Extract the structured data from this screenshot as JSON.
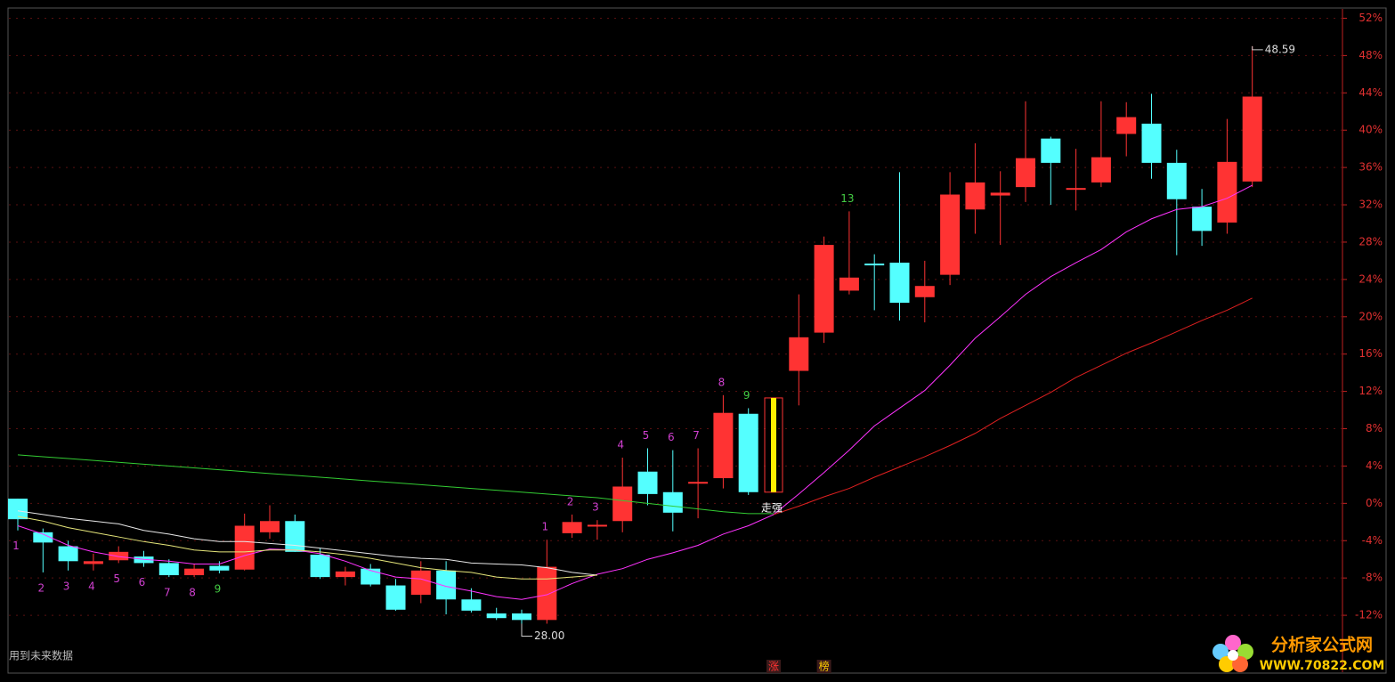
{
  "chart_data": {
    "type": "candlestick",
    "up_color": "#ff3333",
    "down_color": "#54ffff",
    "open": [
      0.5,
      -3.1,
      -4.6,
      -6.5,
      -6.1,
      -5.7,
      -6.4,
      -7.7,
      -6.7,
      -7.1,
      -3.1,
      -1.9,
      -5.5,
      -7.9,
      -7.0,
      -8.8,
      -9.8,
      -7.2,
      -10.3,
      -11.8,
      -11.8,
      -12.5,
      -3.2,
      -2.4,
      -1.9,
      3.4,
      1.2,
      2.2,
      2.7,
      9.6,
      1.2,
      14.2,
      18.3,
      22.8,
      25.7,
      25.8,
      22.1,
      24.5,
      31.5,
      33.0,
      33.9,
      39.1,
      33.7,
      34.4,
      39.6,
      40.7,
      36.5,
      31.8,
      30.1,
      34.5
    ],
    "high": [
      0.5,
      -2.7,
      -4.0,
      -5.4,
      -4.6,
      -5.1,
      -6.0,
      -6.5,
      -6.2,
      -1.1,
      -0.2,
      -1.2,
      -4.8,
      -6.8,
      -6.5,
      -8.1,
      -6.2,
      -6.2,
      -9.1,
      -11.2,
      -11.4,
      -3.9,
      -1.2,
      -1.8,
      4.9,
      5.9,
      5.7,
      5.9,
      11.6,
      10.2,
      11.3,
      22.4,
      28.6,
      31.3,
      26.7,
      35.5,
      26.0,
      35.5,
      38.6,
      35.6,
      43.1,
      39.3,
      38.0,
      43.1,
      43.0,
      43.9,
      37.9,
      33.7,
      41.2,
      49.0
    ],
    "low": [
      -2.9,
      -7.4,
      -7.2,
      -7.2,
      -6.4,
      -6.8,
      -7.9,
      -7.9,
      -7.5,
      -7.2,
      -3.8,
      -5.2,
      -8.1,
      -8.8,
      -8.9,
      -11.5,
      -10.7,
      -11.9,
      -11.7,
      -12.5,
      -12.9,
      -12.9,
      -3.7,
      -3.9,
      -3.1,
      -0.2,
      -3.0,
      -1.6,
      1.6,
      0.9,
      1.2,
      10.5,
      17.2,
      22.4,
      20.7,
      19.6,
      19.4,
      23.4,
      28.9,
      27.7,
      32.3,
      32.0,
      31.4,
      33.9,
      37.2,
      34.8,
      26.6,
      27.6,
      28.9,
      33.9
    ],
    "close": [
      -1.7,
      -4.2,
      -6.2,
      -6.2,
      -5.2,
      -6.4,
      -7.7,
      -7.0,
      -7.2,
      -2.4,
      -1.9,
      -5.2,
      -7.9,
      -7.3,
      -8.7,
      -11.4,
      -7.2,
      -10.3,
      -11.5,
      -12.3,
      -12.5,
      -6.8,
      -2.0,
      -2.3,
      1.8,
      1.0,
      -1.0,
      2.3,
      9.7,
      1.2,
      11.3,
      17.8,
      27.7,
      24.2,
      25.6,
      21.5,
      23.3,
      33.1,
      34.4,
      33.3,
      37.0,
      36.5,
      33.8,
      37.1,
      41.4,
      36.5,
      32.6,
      29.2,
      36.6,
      43.6
    ],
    "highlight": 30,
    "lines": [
      {
        "color": "#ff33ff",
        "values": [
          -2.4,
          -3.3,
          -4.5,
          -5.2,
          -5.7,
          -6.0,
          -6.2,
          -6.5,
          -6.5,
          -5.6,
          -4.9,
          -5.0,
          -5.4,
          -6.2,
          -7.2,
          -7.9,
          -8.1,
          -8.9,
          -9.4,
          -10.0,
          -10.3,
          -9.8,
          -8.6,
          -7.6,
          -7.0,
          -6.0,
          -5.3,
          -4.5,
          -3.3,
          -2.4,
          -1.2,
          1.0,
          3.3,
          5.7,
          8.3,
          10.2,
          12.1,
          14.8,
          17.7,
          20.0,
          22.4,
          24.3,
          25.8,
          27.2,
          29.1,
          30.5,
          31.5,
          31.8,
          32.7,
          34.1
        ]
      },
      {
        "color": "#e02020",
        "values": [
          null,
          null,
          null,
          null,
          null,
          null,
          null,
          null,
          null,
          null,
          null,
          null,
          null,
          null,
          null,
          null,
          null,
          null,
          null,
          null,
          null,
          null,
          null,
          null,
          null,
          null,
          null,
          null,
          null,
          null,
          -1.2,
          -0.3,
          0.7,
          1.6,
          2.8,
          3.9,
          5.0,
          6.2,
          7.5,
          9.1,
          10.5,
          11.9,
          13.5,
          14.8,
          16.1,
          17.2,
          18.4,
          19.6,
          20.7,
          22.0
        ]
      },
      {
        "color": "#33cc33",
        "values": [
          5.2,
          5.0,
          4.8,
          4.6,
          4.4,
          4.2,
          4.0,
          3.8,
          3.6,
          3.4,
          3.2,
          3.0,
          2.8,
          2.6,
          2.4,
          2.2,
          2.0,
          1.8,
          1.6,
          1.4,
          1.2,
          1.0,
          0.8,
          0.6,
          0.3,
          0.0,
          -0.3,
          -0.6,
          -0.9,
          -1.1,
          -1.1,
          null,
          null,
          null,
          null,
          null,
          null,
          null,
          null,
          null,
          null,
          null,
          null,
          null,
          null,
          null,
          null,
          null,
          null,
          null
        ]
      },
      {
        "color": "#e8e8e8",
        "values": [
          -0.8,
          -1.2,
          -1.6,
          -1.9,
          -2.2,
          -2.9,
          -3.3,
          -3.8,
          -4.1,
          -4.1,
          -4.3,
          -4.5,
          -4.8,
          -5.1,
          -5.4,
          -5.7,
          -5.9,
          -6.0,
          -6.4,
          -6.5,
          -6.6,
          -6.9,
          -7.4,
          -7.7,
          null,
          null,
          null,
          null,
          null,
          null,
          null,
          null,
          null,
          null,
          null,
          null,
          null,
          null,
          null,
          null,
          null,
          null,
          null,
          null,
          null,
          null,
          null,
          null,
          null,
          null
        ]
      },
      {
        "color": "#e6e67a",
        "values": [
          -1.4,
          -1.9,
          -2.6,
          -3.1,
          -3.6,
          -4.1,
          -4.5,
          -5.0,
          -5.2,
          -5.2,
          -5.0,
          -5.0,
          -5.2,
          -5.5,
          -5.9,
          -6.4,
          -6.9,
          -7.2,
          -7.4,
          -7.9,
          -8.1,
          -8.1,
          -7.9,
          -7.7,
          null,
          null,
          null,
          null,
          null,
          null,
          null,
          null,
          null,
          null,
          null,
          null,
          null,
          null,
          null,
          null,
          null,
          null,
          null,
          null,
          null,
          null,
          null,
          null,
          null,
          null
        ]
      }
    ],
    "annotations": [
      {
        "text": "1",
        "candle": 0,
        "pos": "below",
        "color": "#d040d0"
      },
      {
        "text": "2",
        "candle": 1,
        "pos": "below",
        "color": "#d040d0"
      },
      {
        "text": "3",
        "candle": 2,
        "pos": "below",
        "color": "#d040d0"
      },
      {
        "text": "4",
        "candle": 3,
        "pos": "below",
        "color": "#d040d0"
      },
      {
        "text": "5",
        "candle": 4,
        "pos": "below",
        "color": "#d040d0"
      },
      {
        "text": "6",
        "candle": 5,
        "pos": "below",
        "color": "#d040d0"
      },
      {
        "text": "7",
        "candle": 6,
        "pos": "below",
        "color": "#d040d0"
      },
      {
        "text": "8",
        "candle": 7,
        "pos": "below",
        "color": "#d040d0"
      },
      {
        "text": "9",
        "candle": 8,
        "pos": "below",
        "color": "#44cc44"
      },
      {
        "text": "1",
        "candle": 21,
        "pos": "above",
        "color": "#d040d0"
      },
      {
        "text": "2",
        "candle": 22,
        "pos": "above",
        "color": "#d040d0"
      },
      {
        "text": "3",
        "candle": 23,
        "pos": "above",
        "color": "#d040d0"
      },
      {
        "text": "4",
        "candle": 24,
        "pos": "above",
        "color": "#d040d0"
      },
      {
        "text": "5",
        "candle": 25,
        "pos": "above",
        "color": "#d040d0"
      },
      {
        "text": "6",
        "candle": 26,
        "pos": "above",
        "color": "#d040d0"
      },
      {
        "text": "7",
        "candle": 27,
        "pos": "above",
        "color": "#d040d0"
      },
      {
        "text": "8",
        "candle": 28,
        "pos": "above",
        "color": "#d040d0"
      },
      {
        "text": "9",
        "candle": 29,
        "pos": "above",
        "color": "#44cc44"
      },
      {
        "text": "13",
        "candle": 33,
        "pos": "above",
        "color": "#44cc44"
      },
      {
        "text": "走强",
        "candle": 30,
        "pos": "below",
        "color": "#ffffff"
      }
    ],
    "price_labels": [
      {
        "text": "48.59",
        "candle": 49,
        "pos": "high"
      },
      {
        "text": "28.00",
        "candle": 20,
        "pos": "low"
      }
    ],
    "footer_marks": [
      {
        "text": "涨",
        "candle": 30,
        "color": "#ff3333"
      },
      {
        "text": "榜",
        "candle": 32,
        "color": "#ffcc00"
      }
    ],
    "note": "用到未来数据",
    "ylim": [
      -18.1,
      53.0
    ],
    "yticks": [
      {
        "value": 52,
        "label": "52%"
      },
      {
        "value": 48,
        "label": "48%"
      },
      {
        "value": 44,
        "label": "44%"
      },
      {
        "value": 40,
        "label": "40%"
      },
      {
        "value": 36,
        "label": "36%"
      },
      {
        "value": 32,
        "label": "32%"
      },
      {
        "value": 28,
        "label": "28%"
      },
      {
        "value": 24,
        "label": "24%"
      },
      {
        "value": 20,
        "label": "20%"
      },
      {
        "value": 16,
        "label": "16%"
      },
      {
        "value": 12,
        "label": "12%"
      },
      {
        "value": 8,
        "label": "8%"
      },
      {
        "value": 4,
        "label": "4%"
      },
      {
        "value": 0,
        "label": "0%"
      },
      {
        "value": -4,
        "label": "-4%"
      },
      {
        "value": -8,
        "label": "-8%"
      },
      {
        "value": -12,
        "label": "-12%"
      }
    ],
    "grid": true
  },
  "logo": {
    "name": "分析家公式网",
    "url": "WWW.70822.COM"
  }
}
